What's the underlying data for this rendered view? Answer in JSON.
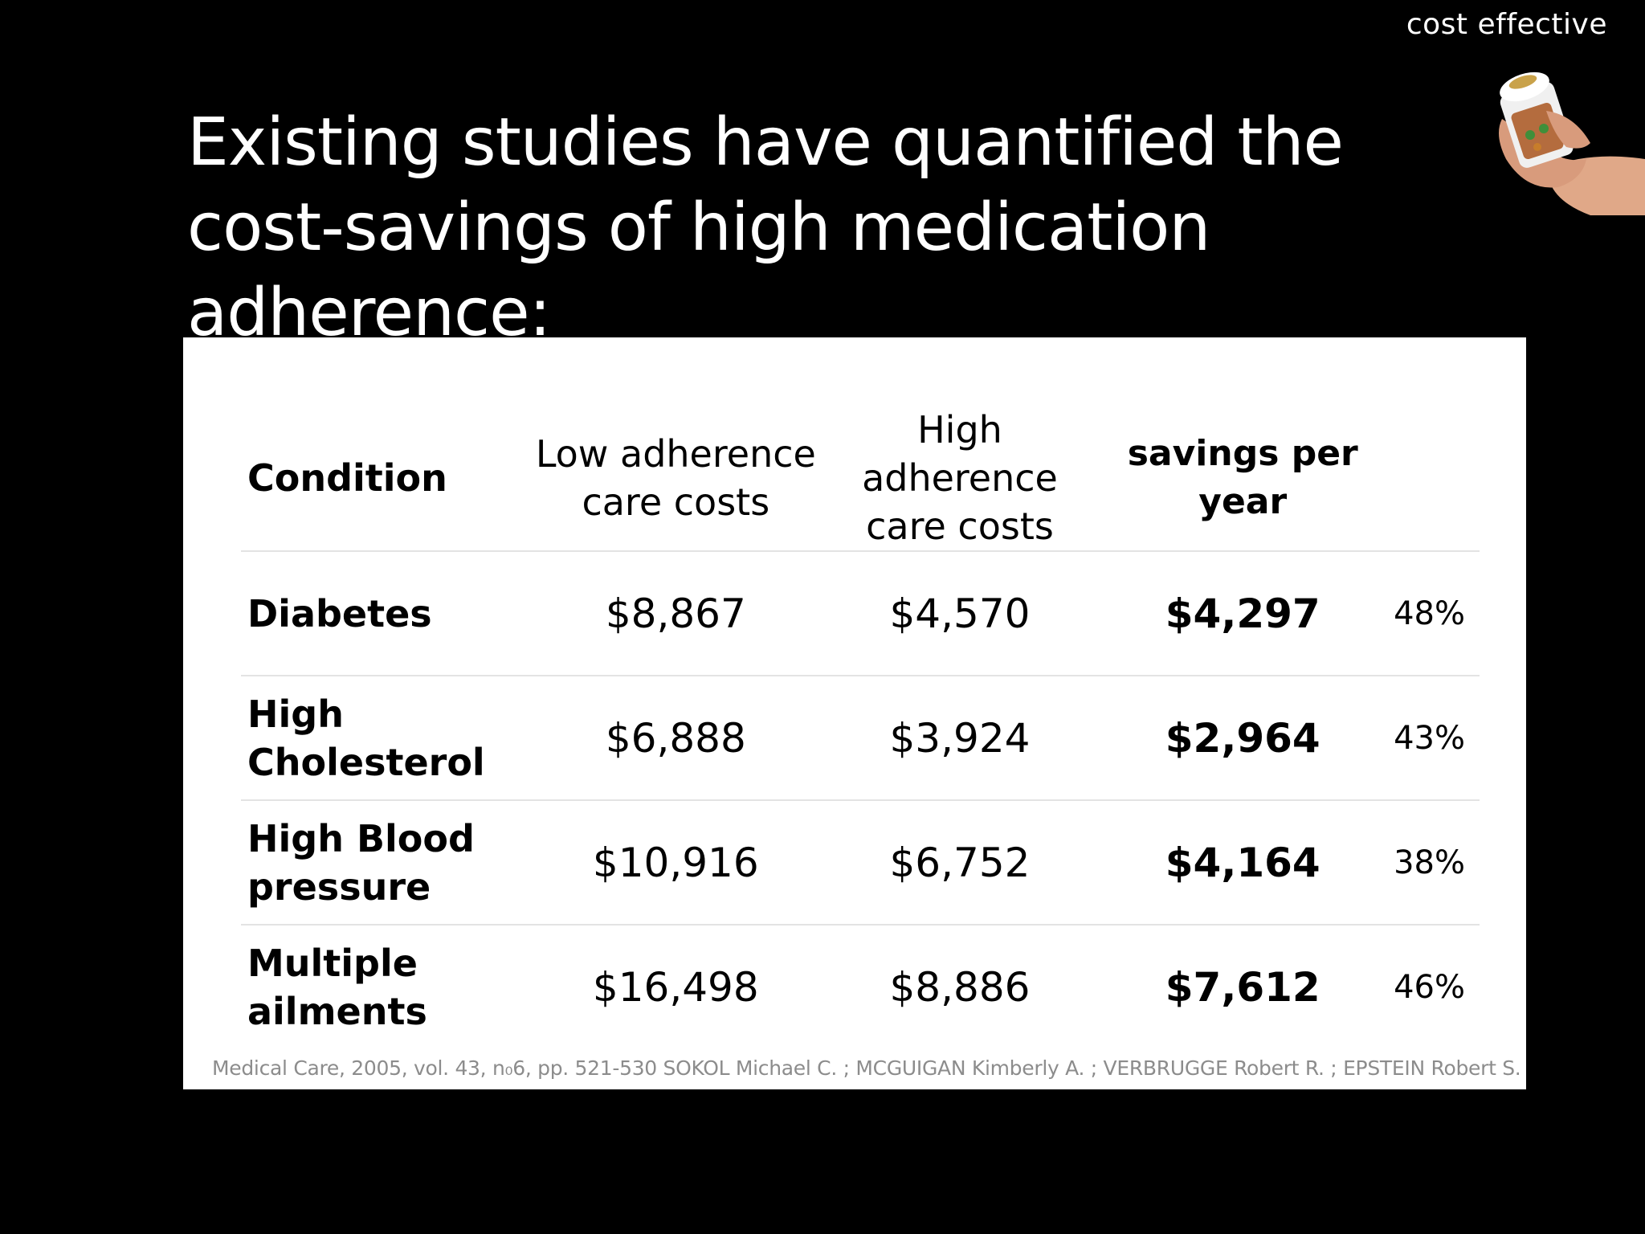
{
  "corner_label": "cost effective",
  "title": "Existing studies have quantified the cost-savings of high medication adherence:",
  "table": {
    "headers": {
      "condition": "Condition",
      "low": "Low adherence care costs",
      "high": "High adherence care costs",
      "savings": "savings per year",
      "percent": ""
    },
    "rows": [
      {
        "condition": "Diabetes",
        "low": "$8,867",
        "high": "$4,570",
        "savings": "$4,297",
        "percent": "48%"
      },
      {
        "condition": "High Cholesterol",
        "low": "$6,888",
        "high": "$3,924",
        "savings": "$2,964",
        "percent": "43%"
      },
      {
        "condition": "High Blood pressure",
        "low": "$10,916",
        "high": "$6,752",
        "savings": "$4,164",
        "percent": "38%"
      },
      {
        "condition": "Multiple ailments",
        "low": "$16,498",
        "high": "$8,886",
        "savings": "$7,612",
        "percent": "46%"
      }
    ]
  },
  "citation": "Medical Care, 2005, vol. 43, n₀6, pp. 521-530 SOKOL Michael C. ; MCGUIGAN Kimberly A. ; VERBRUGGE Robert R. ; EPSTEIN Robert S.",
  "icons": {
    "pill_bottle": "hand-holding-pill-bottle-icon"
  },
  "colors": {
    "background": "#000000",
    "card": "#ffffff",
    "citation": "#8c8c8c"
  }
}
